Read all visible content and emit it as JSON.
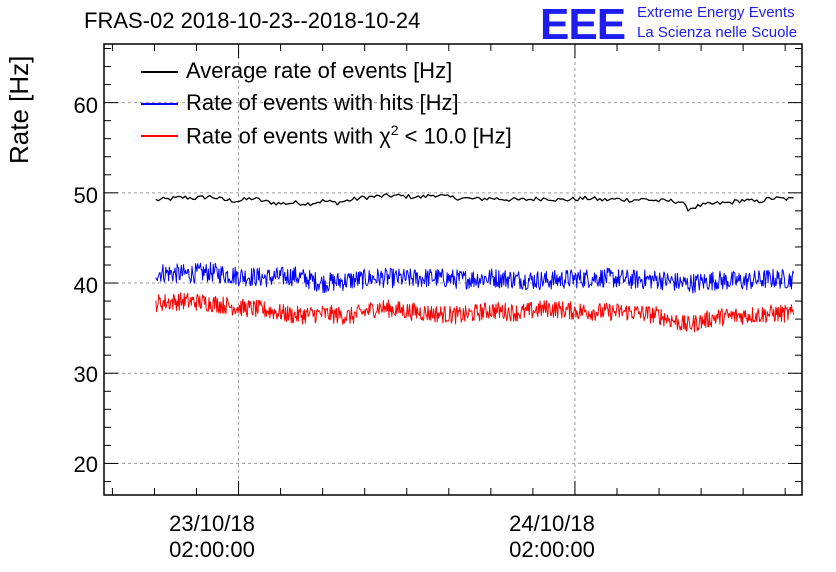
{
  "header": {
    "title": "FRAS-02 2018-10-23--2018-10-24",
    "logo_text": "EEE",
    "org_line1": "Extreme Energy Events",
    "org_line2": "La Scienza nelle Scuole"
  },
  "colors": {
    "average": "#000000",
    "hits": "#0000ff",
    "chi2": "#ff0000",
    "logo": "#1d1df0",
    "grid": "#9a9a9a"
  },
  "chart_data": {
    "type": "line",
    "title": "FRAS-02 2018-10-23--2018-10-24",
    "xlabel": "",
    "ylabel": "Rate [Hz]",
    "ylim": [
      16.5,
      66.5
    ],
    "yticks": [
      20,
      30,
      40,
      50,
      60
    ],
    "ytick_labels": [
      "20",
      "30",
      "40",
      "50",
      "60"
    ],
    "xlim_hours": [
      -7.6,
      42.2
    ],
    "x_unit": "hours since 2018-10-23 00:00:00",
    "xticks_hours": [
      2,
      26
    ],
    "xtick_labels": [
      {
        "date": "23/10/18",
        "time": "02:00:00"
      },
      {
        "date": "24/10/18",
        "time": "02:00:00"
      }
    ],
    "grid": true,
    "legend_position": "top-left",
    "series": [
      {
        "name": "Average rate of events [Hz]",
        "label_main": "Average rate of events [Hz]",
        "color": "#000000",
        "x_hours": [
          -3.9,
          -3,
          -2,
          -1,
          0,
          1,
          2,
          3,
          4,
          5,
          6,
          7,
          8,
          9,
          10,
          11,
          12,
          13,
          14,
          15,
          16,
          17,
          18,
          19,
          20,
          21,
          22,
          23,
          24,
          25,
          26,
          27,
          28,
          29,
          30,
          31,
          32,
          33,
          33.6,
          34,
          35,
          36,
          37,
          38,
          39,
          40,
          41.6
        ],
        "values": [
          49.2,
          49.3,
          49.5,
          49.4,
          49.6,
          49.2,
          49.1,
          49.4,
          49.0,
          48.8,
          48.9,
          48.8,
          49.1,
          48.9,
          49.2,
          49.5,
          49.6,
          49.7,
          49.6,
          49.5,
          49.8,
          49.5,
          49.4,
          49.3,
          49.4,
          49.3,
          49.2,
          49.3,
          49.4,
          49.2,
          49.3,
          49.4,
          49.2,
          49.3,
          49.2,
          49.3,
          49.1,
          49.1,
          49.0,
          48.2,
          48.6,
          48.8,
          48.9,
          49.2,
          49.0,
          49.4,
          49.3
        ],
        "noise": 0.25
      },
      {
        "name": "Rate of events with hits [Hz]",
        "label_main": "Rate of events with hits [Hz]",
        "color": "#0000ff",
        "x_hours": [
          -3.9,
          -2,
          0,
          2,
          4,
          6,
          8,
          10,
          12,
          14,
          16,
          18,
          20,
          22,
          24,
          26,
          28,
          30,
          32,
          34,
          36,
          38,
          40,
          41.6
        ],
        "values": [
          41.2,
          41.0,
          41.2,
          40.8,
          40.6,
          40.8,
          40.0,
          40.3,
          40.6,
          40.5,
          40.6,
          40.4,
          40.6,
          40.4,
          40.3,
          40.5,
          40.6,
          40.4,
          40.4,
          39.9,
          40.3,
          40.2,
          40.5,
          40.4
        ],
        "noise": 1.1
      },
      {
        "name": "Rate of events with chi2 < 10.0 [Hz]",
        "label_main": "Rate of events with χ",
        "label_sup": "2",
        "label_tail": " < 10.0 [Hz]",
        "color": "#ff0000",
        "x_hours": [
          -3.9,
          -2,
          0,
          2,
          4,
          6,
          8,
          10,
          12,
          14,
          16,
          18,
          20,
          22,
          24,
          26,
          28,
          30,
          32,
          34,
          36,
          38,
          40,
          41.6
        ],
        "values": [
          37.8,
          38.0,
          37.8,
          37.3,
          37.0,
          36.4,
          36.6,
          36.3,
          37.3,
          36.9,
          36.6,
          36.4,
          37.0,
          36.7,
          37.2,
          36.9,
          36.8,
          36.8,
          36.4,
          35.3,
          36.2,
          36.4,
          36.6,
          36.6
        ],
        "noise": 1.0
      }
    ]
  }
}
